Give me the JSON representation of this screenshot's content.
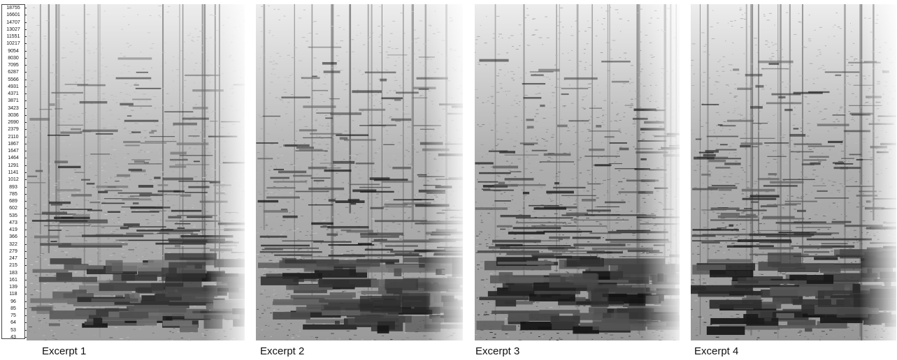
{
  "frequency_axis": {
    "ticks": [
      "18755",
      "16601",
      "14707",
      "13027",
      "11551",
      "10217",
      "9054",
      "8030",
      "7095",
      "6287",
      "5566",
      "4931",
      "4371",
      "3871",
      "3423",
      "3036",
      "2690",
      "2379",
      "2110",
      "1867",
      "1647",
      "1464",
      "1291",
      "1141",
      "1012",
      "893",
      "785",
      "689",
      "602",
      "535",
      "473",
      "419",
      "366",
      "322",
      "279",
      "247",
      "215",
      "183",
      "161",
      "139",
      "118",
      "96",
      "85",
      "75",
      "64",
      "53",
      "43"
    ]
  },
  "excerpts": [
    {
      "caption": "Excerpt 1",
      "intensity": 0.85
    },
    {
      "caption": "Excerpt 2",
      "intensity": 0.95
    },
    {
      "caption": "Excerpt 3",
      "intensity": 1.15
    },
    {
      "caption": "Excerpt 4",
      "intensity": 1.1
    }
  ],
  "colors": {
    "paper": "#ffffff",
    "ink": "#111111",
    "noise_light": "#d8d8d8",
    "band_dark": "#1a1a1a"
  }
}
